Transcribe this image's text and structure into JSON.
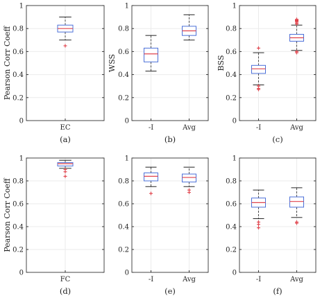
{
  "colors": {
    "box": "#4a6fd8",
    "median": "#e0424b",
    "outlier": "#e0424b",
    "whisker": "#222222",
    "grid": "#ebebeb",
    "axes": "#333333"
  },
  "chart_data": [
    {
      "type": "box",
      "caption": "(a)",
      "ylabel": "Pearson Corr Coeff",
      "ylim": [
        0,
        1
      ],
      "yticks": [
        "0",
        "0.2",
        "0.4",
        "0.6",
        "0.8",
        "1"
      ],
      "grid": true,
      "categories": [
        "EC"
      ],
      "boxes": [
        {
          "q1": 0.77,
          "median": 0.8,
          "q3": 0.83,
          "whisker_low": 0.7,
          "whisker_high": 0.9,
          "outliers": [
            0.65
          ]
        }
      ]
    },
    {
      "type": "box",
      "caption": "(b)",
      "ylabel": "WSS",
      "ylim": [
        0,
        1
      ],
      "yticks": [
        "0",
        "0.2",
        "0.4",
        "0.6",
        "0.8",
        "1"
      ],
      "grid": true,
      "categories": [
        "-I",
        "Avg"
      ],
      "boxes": [
        {
          "q1": 0.51,
          "median": 0.58,
          "q3": 0.63,
          "whisker_low": 0.43,
          "whisker_high": 0.74,
          "outliers": []
        },
        {
          "q1": 0.74,
          "median": 0.78,
          "q3": 0.82,
          "whisker_low": 0.7,
          "whisker_high": 0.92,
          "outliers": []
        }
      ]
    },
    {
      "type": "box",
      "caption": "(c)",
      "ylabel": "BSS",
      "ylim": [
        0,
        1
      ],
      "yticks": [
        "0",
        "0.2",
        "0.4",
        "0.6",
        "0.8",
        "1"
      ],
      "grid": true,
      "categories": [
        "-I",
        "Avg"
      ],
      "boxes": [
        {
          "q1": 0.41,
          "median": 0.45,
          "q3": 0.48,
          "whisker_low": 0.31,
          "whisker_high": 0.59,
          "outliers": [
            0.27,
            0.28,
            0.3,
            0.63
          ]
        },
        {
          "q1": 0.69,
          "median": 0.72,
          "q3": 0.75,
          "whisker_low": 0.61,
          "whisker_high": 0.83,
          "outliers": [
            0.59,
            0.6,
            0.84,
            0.85,
            0.86,
            0.865,
            0.87,
            0.875,
            0.88
          ]
        }
      ]
    },
    {
      "type": "box",
      "caption": "(d)",
      "ylabel": "Pearson Corr Coeff",
      "ylim": [
        0,
        1
      ],
      "yticks": [
        "0",
        "0.2",
        "0.4",
        "0.6",
        "0.8",
        "1"
      ],
      "grid": true,
      "categories": [
        "FC"
      ],
      "boxes": [
        {
          "q1": 0.93,
          "median": 0.95,
          "q3": 0.96,
          "whisker_low": 0.91,
          "whisker_high": 0.98,
          "outliers": [
            0.9,
            0.88,
            0.84
          ]
        }
      ]
    },
    {
      "type": "box",
      "caption": "(e)",
      "ylabel": "",
      "ylim": [
        0,
        1
      ],
      "yticks": [
        "0",
        "0.2",
        "0.4",
        "0.6",
        "0.8",
        "1"
      ],
      "grid": true,
      "categories": [
        "-I",
        "Avg"
      ],
      "boxes": [
        {
          "q1": 0.8,
          "median": 0.84,
          "q3": 0.87,
          "whisker_low": 0.75,
          "whisker_high": 0.92,
          "outliers": [
            0.69
          ]
        },
        {
          "q1": 0.79,
          "median": 0.83,
          "q3": 0.86,
          "whisker_low": 0.75,
          "whisker_high": 0.92,
          "outliers": [
            0.72,
            0.7
          ]
        }
      ]
    },
    {
      "type": "box",
      "caption": "(f)",
      "ylabel": "",
      "ylim": [
        0,
        1
      ],
      "yticks": [
        "0",
        "0.2",
        "0.4",
        "0.6",
        "0.8",
        "1"
      ],
      "grid": true,
      "categories": [
        "-I",
        "Avg"
      ],
      "boxes": [
        {
          "q1": 0.57,
          "median": 0.61,
          "q3": 0.65,
          "whisker_low": 0.47,
          "whisker_high": 0.72,
          "outliers": [
            0.44,
            0.42,
            0.39
          ]
        },
        {
          "q1": 0.57,
          "median": 0.62,
          "q3": 0.66,
          "whisker_low": 0.48,
          "whisker_high": 0.74,
          "outliers": [
            0.44,
            0.43
          ]
        }
      ]
    }
  ]
}
